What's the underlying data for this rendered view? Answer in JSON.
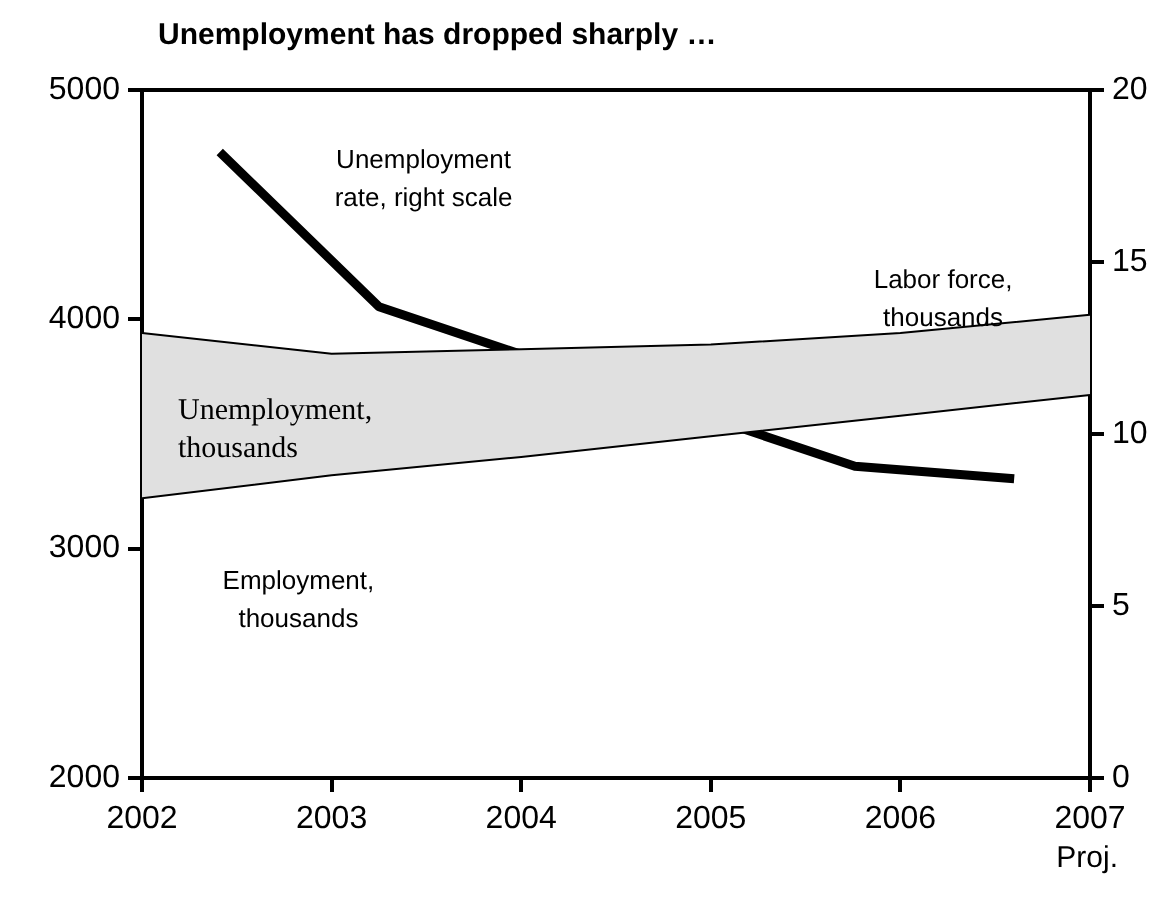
{
  "chart_data": {
    "type": "line",
    "title": "Unemployment has dropped sharply …",
    "xlim": [
      2002,
      2007
    ],
    "xticks": [
      2002,
      2003,
      2004,
      2005,
      2006,
      2007
    ],
    "ylim": [
      2000,
      5000
    ],
    "yticks": [
      2000,
      3000,
      4000,
      5000
    ],
    "y2lim": [
      0,
      20
    ],
    "y2ticks": [
      0,
      5,
      10,
      15,
      20
    ],
    "grid": false,
    "legend": false,
    "marker": "none",
    "series": [
      {
        "type": "line",
        "color": "#000000",
        "x": [
          2002,
          2003,
          2004,
          2005,
          2006,
          2007
        ],
        "values": [
          3220,
          3320,
          3400,
          3490,
          3580,
          3670
        ]
      },
      {
        "type": "area",
        "color": "#e0e0e0",
        "x": [
          2002,
          2003,
          2004,
          2005,
          2006,
          2007
        ],
        "values": [
          3940,
          3850,
          3870,
          3890,
          3940,
          4020
        ]
      },
      {
        "type": "line",
        "color": "#000000",
        "axis": "y2",
        "x": [
          2002.41,
          2003.25,
          2005.76,
          2006.6
        ],
        "values": [
          18.2,
          13.7,
          9.06,
          8.7
        ]
      }
    ],
    "annotations": [
      "Unemployment rate, right scale",
      "Labor force, thousands",
      "Unemployment, thousands",
      "Employment, thousands",
      "Proj."
    ]
  }
}
